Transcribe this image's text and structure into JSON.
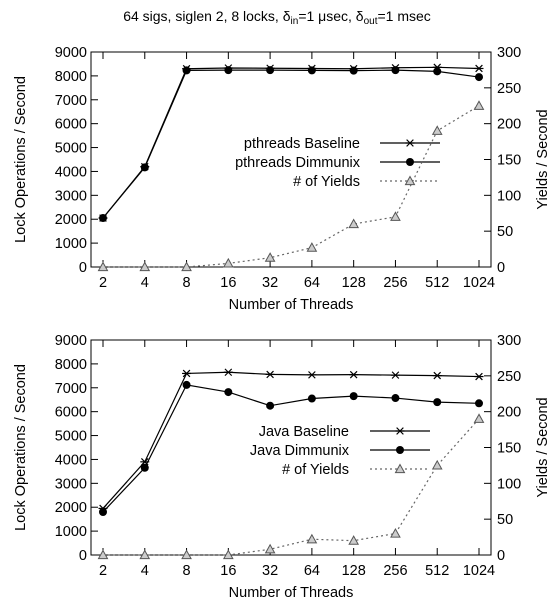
{
  "title": {
    "prefix": "64 sigs, siglen 2, 8 locks, δ",
    "sub_in": "in",
    "mid": "=1 μsec, δ",
    "sub_out": "out",
    "suffix": "=1 msec"
  },
  "chart_data": [
    {
      "type": "line",
      "xlabel": "Number of Threads",
      "ylabel": "Lock Operations / Second",
      "y2label": "Yields / Second",
      "categories": [
        "2",
        "4",
        "8",
        "16",
        "32",
        "64",
        "128",
        "256",
        "512",
        "1024"
      ],
      "ylim": [
        0,
        9000
      ],
      "yticks": [
        "0",
        "1000",
        "2000",
        "3000",
        "4000",
        "5000",
        "6000",
        "7000",
        "8000",
        "9000"
      ],
      "y2lim": [
        0,
        300
      ],
      "y2ticks": [
        "0",
        "50",
        "100",
        "150",
        "200",
        "250",
        "300"
      ],
      "grid": false,
      "legend_position": "right",
      "series": [
        {
          "name": "pthreads Baseline",
          "axis": "left",
          "marker": "star",
          "line": "solid",
          "color": "#000000",
          "values": [
            2050,
            4200,
            8300,
            8330,
            8320,
            8310,
            8300,
            8340,
            8360,
            8310
          ]
        },
        {
          "name": "pthreads Dimmunix",
          "axis": "left",
          "marker": "circle",
          "line": "solid",
          "color": "#000000",
          "values": [
            2050,
            4170,
            8230,
            8240,
            8240,
            8230,
            8220,
            8240,
            8190,
            7950
          ]
        },
        {
          "name": "# of Yields",
          "axis": "right",
          "marker": "triangle",
          "line": "dotted",
          "color": "#666666",
          "values": [
            0,
            0,
            0,
            5,
            13,
            27,
            60,
            70,
            190,
            225
          ]
        }
      ]
    },
    {
      "type": "line",
      "xlabel": "Number of Threads",
      "ylabel": "Lock Operations / Second",
      "y2label": "Yields / Second",
      "categories": [
        "2",
        "4",
        "8",
        "16",
        "32",
        "64",
        "128",
        "256",
        "512",
        "1024"
      ],
      "ylim": [
        0,
        9000
      ],
      "yticks": [
        "0",
        "1000",
        "2000",
        "3000",
        "4000",
        "5000",
        "6000",
        "7000",
        "8000",
        "9000"
      ],
      "y2lim": [
        0,
        300
      ],
      "y2ticks": [
        "0",
        "50",
        "100",
        "150",
        "200",
        "250",
        "300"
      ],
      "grid": false,
      "legend_position": "right",
      "series": [
        {
          "name": "Java Baseline",
          "axis": "left",
          "marker": "star",
          "line": "solid",
          "color": "#000000",
          "values": [
            1950,
            3900,
            7600,
            7650,
            7560,
            7540,
            7550,
            7530,
            7510,
            7470
          ]
        },
        {
          "name": "Java Dimmunix",
          "axis": "left",
          "marker": "circle",
          "line": "solid",
          "color": "#000000",
          "values": [
            1800,
            3650,
            7120,
            6820,
            6250,
            6550,
            6650,
            6570,
            6400,
            6350
          ]
        },
        {
          "name": "# of Yields",
          "axis": "right",
          "marker": "triangle",
          "line": "dotted",
          "color": "#666666",
          "values": [
            0,
            0,
            0,
            0,
            8,
            22,
            20,
            30,
            125,
            190
          ]
        }
      ]
    }
  ]
}
